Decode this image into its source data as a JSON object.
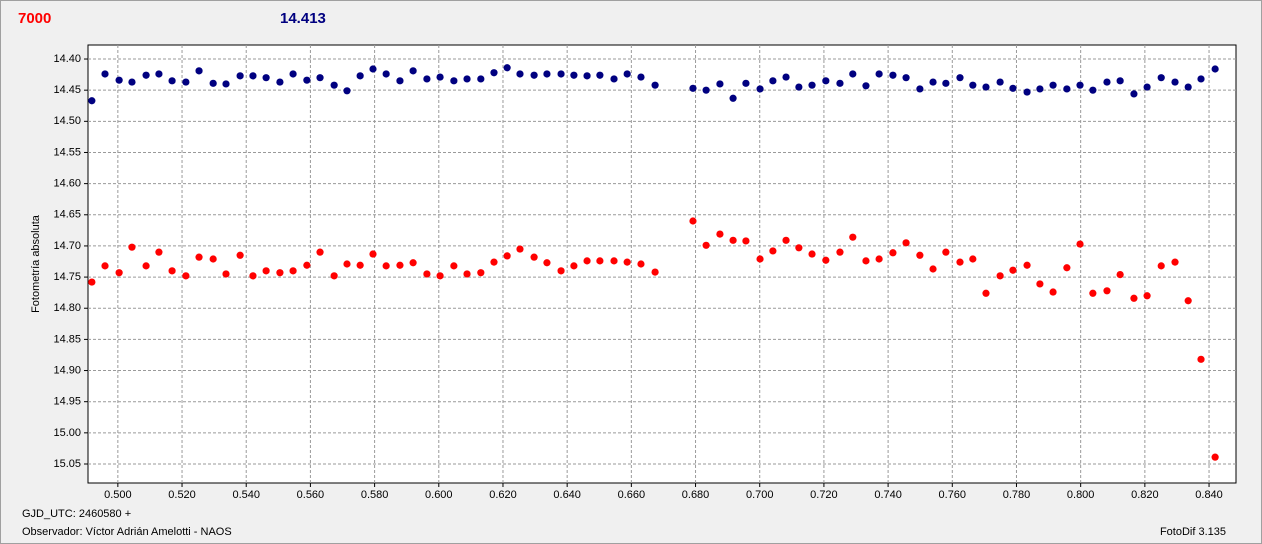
{
  "chart_data": {
    "type": "scatter",
    "y_label": "Fotometría absoluta",
    "footer_left_1": "GJD_UTC: 2460580 +",
    "footer_left_2": "Observador: Víctor Adrián Amelotti - NAOS",
    "footer_right": "FotoDif 3.135",
    "xlim": [
      0.4907,
      0.8484
    ],
    "ylim": [
      14.3775,
      15.0805
    ],
    "y_inverted": true,
    "grid": true,
    "xticks": [
      {
        "value": 0.5,
        "label": "0.500"
      },
      {
        "value": 0.52,
        "label": "0.520"
      },
      {
        "value": 0.54,
        "label": "0.540"
      },
      {
        "value": 0.56,
        "label": "0.560"
      },
      {
        "value": 0.58,
        "label": "0.580"
      },
      {
        "value": 0.6,
        "label": "0.600"
      },
      {
        "value": 0.62,
        "label": "0.620"
      },
      {
        "value": 0.64,
        "label": "0.640"
      },
      {
        "value": 0.66,
        "label": "0.660"
      },
      {
        "value": 0.68,
        "label": "0.680"
      },
      {
        "value": 0.7,
        "label": "0.700"
      },
      {
        "value": 0.72,
        "label": "0.720"
      },
      {
        "value": 0.74,
        "label": "0.740"
      },
      {
        "value": 0.76,
        "label": "0.760"
      },
      {
        "value": 0.78,
        "label": "0.780"
      },
      {
        "value": 0.8,
        "label": "0.800"
      },
      {
        "value": 0.82,
        "label": "0.820"
      },
      {
        "value": 0.84,
        "label": "0.840"
      }
    ],
    "yticks": [
      {
        "value": 14.4,
        "label": "14.40"
      },
      {
        "value": 14.45,
        "label": "14.45"
      },
      {
        "value": 14.5,
        "label": "14.50"
      },
      {
        "value": 14.55,
        "label": "14.55"
      },
      {
        "value": 14.6,
        "label": "14.60"
      },
      {
        "value": 14.65,
        "label": "14.65"
      },
      {
        "value": 14.7,
        "label": "14.70"
      },
      {
        "value": 14.75,
        "label": "14.75"
      },
      {
        "value": 14.8,
        "label": "14.80"
      },
      {
        "value": 14.85,
        "label": "14.85"
      },
      {
        "value": 14.9,
        "label": "14.90"
      },
      {
        "value": 14.95,
        "label": "14.95"
      },
      {
        "value": 15.0,
        "label": "15.00"
      },
      {
        "value": 15.05,
        "label": "15.05"
      }
    ],
    "x": [
      0.4919,
      0.496,
      0.5004,
      0.5044,
      0.5088,
      0.5128,
      0.5169,
      0.5212,
      0.5253,
      0.5297,
      0.5337,
      0.5381,
      0.5421,
      0.5462,
      0.5505,
      0.5546,
      0.5589,
      0.563,
      0.5674,
      0.5714,
      0.5755,
      0.5795,
      0.5836,
      0.5879,
      0.592,
      0.5963,
      0.6004,
      0.6047,
      0.6088,
      0.6131,
      0.6172,
      0.6213,
      0.6253,
      0.6297,
      0.6337,
      0.6381,
      0.6421,
      0.6462,
      0.6502,
      0.6546,
      0.6587,
      0.663,
      0.6674,
      0.6792,
      0.6833,
      0.6876,
      0.6917,
      0.6957,
      0.7001,
      0.7041,
      0.7082,
      0.7122,
      0.7163,
      0.7206,
      0.725,
      0.729,
      0.7331,
      0.7372,
      0.7415,
      0.7456,
      0.7499,
      0.754,
      0.758,
      0.7624,
      0.7664,
      0.7705,
      0.7749,
      0.7789,
      0.7833,
      0.7873,
      0.7914,
      0.7957,
      0.7998,
      0.8038,
      0.8082,
      0.8123,
      0.8166,
      0.8207,
      0.8251,
      0.8294,
      0.8335,
      0.8375,
      0.8419
    ],
    "series": [
      {
        "name": "7000",
        "color": "#ff0000",
        "values": [
          14.758,
          14.732,
          14.743,
          14.702,
          14.732,
          14.71,
          14.74,
          14.748,
          14.718,
          14.721,
          14.745,
          14.715,
          14.748,
          14.74,
          14.743,
          14.74,
          14.731,
          14.71,
          14.748,
          14.729,
          14.731,
          14.713,
          14.732,
          14.731,
          14.727,
          14.745,
          14.748,
          14.732,
          14.745,
          14.743,
          14.726,
          14.716,
          14.705,
          14.718,
          14.727,
          14.74,
          14.732,
          14.724,
          14.724,
          14.724,
          14.726,
          14.729,
          14.742,
          14.66,
          14.699,
          14.681,
          14.691,
          14.692,
          14.721,
          14.708,
          14.691,
          14.703,
          14.713,
          14.723,
          14.71,
          14.686,
          14.724,
          14.721,
          14.711,
          14.695,
          14.715,
          14.737,
          14.71,
          14.726,
          14.721,
          14.776,
          14.748,
          14.739,
          14.731,
          14.761,
          14.774,
          14.735,
          14.697,
          14.776,
          14.772,
          14.746,
          14.784,
          14.78,
          14.732,
          14.726,
          14.788,
          14.882,
          15.039
        ]
      },
      {
        "name": "14.413",
        "color": "#000080",
        "values": [
          14.467,
          14.424,
          14.434,
          14.437,
          14.426,
          14.424,
          14.435,
          14.437,
          14.419,
          14.439,
          14.44,
          14.427,
          14.427,
          14.43,
          14.437,
          14.424,
          14.434,
          14.43,
          14.442,
          14.451,
          14.427,
          14.416,
          14.424,
          14.435,
          14.419,
          14.432,
          14.429,
          14.435,
          14.432,
          14.432,
          14.422,
          14.414,
          14.424,
          14.426,
          14.424,
          14.424,
          14.426,
          14.427,
          14.426,
          14.432,
          14.424,
          14.429,
          14.442,
          14.447,
          14.45,
          14.44,
          14.463,
          14.439,
          14.448,
          14.435,
          14.429,
          14.445,
          14.442,
          14.435,
          14.439,
          14.424,
          14.443,
          14.424,
          14.426,
          14.43,
          14.448,
          14.437,
          14.439,
          14.43,
          14.442,
          14.445,
          14.437,
          14.447,
          14.453,
          14.448,
          14.442,
          14.448,
          14.442,
          14.45,
          14.437,
          14.435,
          14.456,
          14.445,
          14.43,
          14.437,
          14.445,
          14.432,
          14.416
        ]
      }
    ]
  }
}
